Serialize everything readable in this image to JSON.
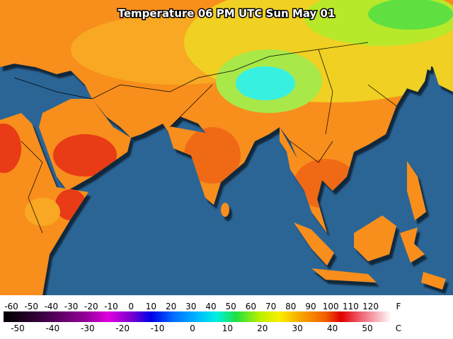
{
  "title": "Temperature 06 PM UTC Sun May 01",
  "legend": {
    "fahrenheit": {
      "unit": "F",
      "ticks": [
        -60,
        -50,
        -40,
        -30,
        -20,
        -10,
        0,
        10,
        20,
        30,
        40,
        50,
        60,
        70,
        80,
        90,
        100,
        110,
        120
      ]
    },
    "celsius": {
      "unit": "C",
      "ticks": [
        -50,
        -40,
        -30,
        -20,
        -10,
        0,
        10,
        20,
        30,
        40,
        50
      ]
    }
  }
}
